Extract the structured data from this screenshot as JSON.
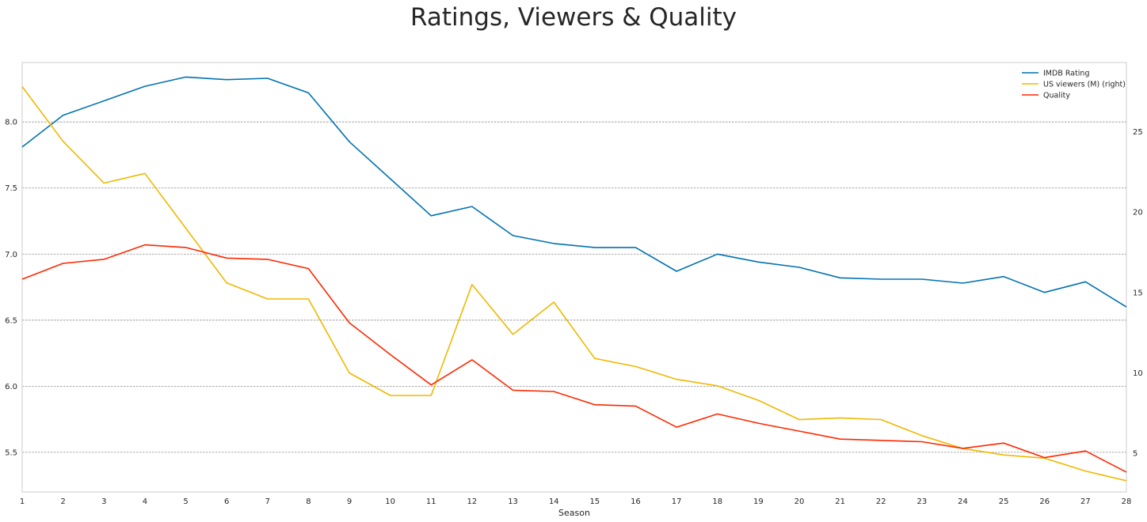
{
  "chart_data": {
    "type": "line",
    "title": "Ratings, Viewers & Quality",
    "xlabel": "Season",
    "ylabel": "",
    "ylabel_right": "",
    "x": [
      1,
      2,
      3,
      4,
      5,
      6,
      7,
      8,
      9,
      10,
      11,
      12,
      13,
      14,
      15,
      16,
      17,
      18,
      19,
      20,
      21,
      22,
      23,
      24,
      25,
      26,
      27,
      28
    ],
    "xlim": [
      1,
      28
    ],
    "ylim_left": [
      5.2,
      8.45
    ],
    "ylim_right": [
      2.6,
      29.3
    ],
    "yticks_left": [
      5.5,
      6.0,
      6.5,
      7.0,
      7.5,
      8.0
    ],
    "yticks_left_labels": [
      "5.5",
      "6.0",
      "6.5",
      "7.0",
      "7.5",
      "8.0"
    ],
    "yticks_right": [
      5,
      10,
      15,
      20,
      25
    ],
    "yticks_right_labels": [
      "5",
      "10",
      "15",
      "20",
      "25"
    ],
    "grid": true,
    "legend_position": "top-right",
    "series": [
      {
        "name": "IMDB Rating",
        "axis": "left",
        "color": "#0072b2",
        "values": [
          7.81,
          8.05,
          8.16,
          8.27,
          8.34,
          8.32,
          8.33,
          8.22,
          7.85,
          7.57,
          7.29,
          7.36,
          7.14,
          7.08,
          7.05,
          7.05,
          6.87,
          7.0,
          6.94,
          6.9,
          6.82,
          6.81,
          6.81,
          6.78,
          6.83,
          6.71,
          6.79,
          6.6
        ]
      },
      {
        "name": "US viewers (M) (right)",
        "axis": "right",
        "color": "#f0b800",
        "values": [
          27.8,
          24.4,
          21.8,
          22.4,
          19.0,
          15.6,
          14.6,
          14.6,
          10.0,
          8.6,
          8.6,
          15.5,
          12.4,
          14.4,
          10.9,
          10.4,
          9.6,
          9.2,
          8.3,
          7.1,
          7.2,
          7.1,
          6.1,
          5.3,
          4.9,
          4.7,
          3.9,
          3.3
        ]
      },
      {
        "name": "Quality",
        "axis": "left",
        "color": "#ff2700",
        "values": [
          6.81,
          6.93,
          6.96,
          7.07,
          7.05,
          6.97,
          6.96,
          6.89,
          6.48,
          6.24,
          6.01,
          6.2,
          5.97,
          5.96,
          5.86,
          5.85,
          5.69,
          5.79,
          5.72,
          5.66,
          5.6,
          5.59,
          5.58,
          5.53,
          5.57,
          5.46,
          5.51,
          5.35
        ]
      }
    ]
  }
}
